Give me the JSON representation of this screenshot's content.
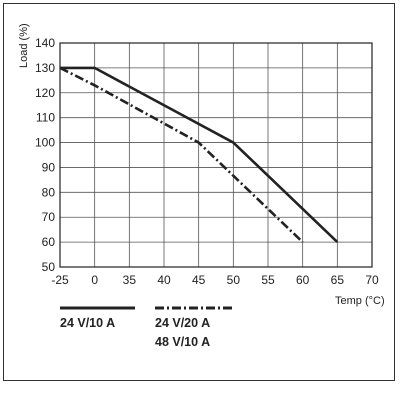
{
  "chart_data": {
    "type": "line",
    "xlabel": "Temp (°C)",
    "ylabel": "Load (%)",
    "x_ticks": [
      "-25",
      "0",
      "35",
      "40",
      "45",
      "50",
      "55",
      "60",
      "65",
      "70"
    ],
    "y_ticks": [
      "50",
      "60",
      "70",
      "80",
      "90",
      "100",
      "110",
      "120",
      "130",
      "140"
    ],
    "ylim": [
      50,
      140
    ],
    "grid": true,
    "legend_position": "bottom",
    "series": [
      {
        "name": "24 V/10 A",
        "style": "solid",
        "color": "#222222",
        "points": [
          {
            "x": -25,
            "y": 130
          },
          {
            "x": 0,
            "y": 130
          },
          {
            "x": 50,
            "y": 100
          },
          {
            "x": 65,
            "y": 60
          }
        ]
      },
      {
        "name": "24 V/20 A",
        "name_line2": "48 V/10 A",
        "style": "dash-dot",
        "color": "#222222",
        "points": [
          {
            "x": -25,
            "y": 130
          },
          {
            "x": 0,
            "y": 123
          },
          {
            "x": 45,
            "y": 100
          },
          {
            "x": 60,
            "y": 60
          }
        ]
      }
    ]
  }
}
